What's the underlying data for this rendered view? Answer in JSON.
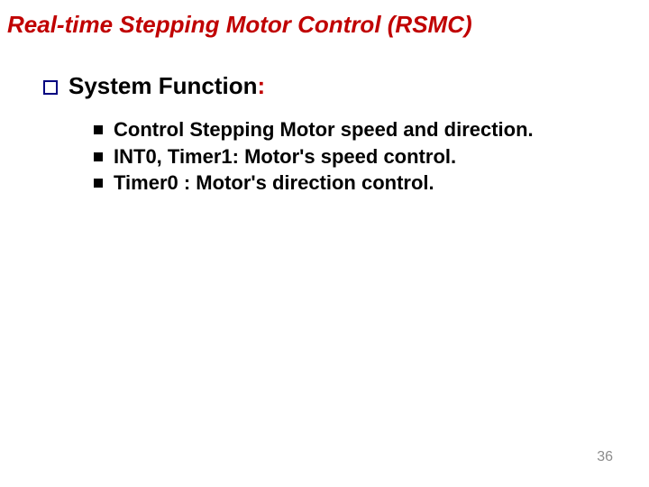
{
  "slide": {
    "title": "Real-time Stepping Motor Control (RSMC)",
    "title_color": "#c00000",
    "title_fontsize": 26,
    "section": {
      "heading": "System Function:",
      "heading_fontsize": 26,
      "heading_color_main": "#000000",
      "heading_color_colon": "#c00000",
      "bullet_marker_color": "#000080"
    },
    "bullets": [
      "Control Stepping Motor speed and direction.",
      "INT0, Timer1: Motor's speed control.",
      "Timer0 : Motor's direction control."
    ],
    "bullet_fontsize": 22,
    "bullet_color": "#000000",
    "page_number": "36",
    "page_number_color": "#8c8c8c",
    "page_number_fontsize": 16,
    "background_color": "#ffffff"
  }
}
